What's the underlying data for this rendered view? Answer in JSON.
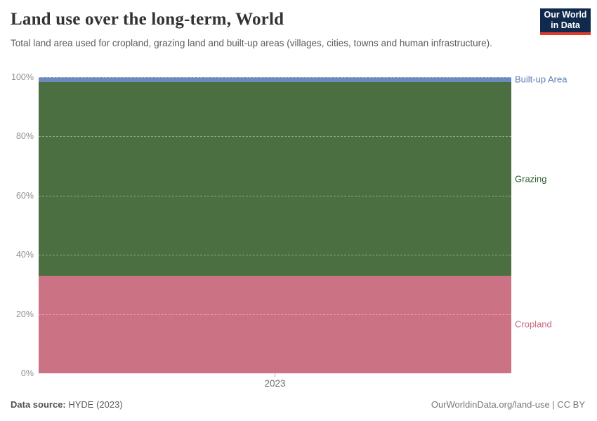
{
  "header": {
    "title": "Land use over the long-term, World",
    "subtitle": "Total land area used for cropland, grazing land and built-up areas (villages, cities, towns and human infrastructure).",
    "logo": {
      "line1": "Our World",
      "line2": "in Data",
      "bg_color": "#10294c",
      "underline_color": "#e23a2b"
    }
  },
  "footer": {
    "source_label": "Data source:",
    "source_value": " HYDE (2023)",
    "attribution": "OurWorldinData.org/land-use | CC BY"
  },
  "chart_data": {
    "type": "area",
    "stacking": "relative",
    "series_order": "top-to-bottom",
    "x": [
      2023
    ],
    "series": [
      {
        "name": "Built-up Area",
        "values": [
          1.6
        ],
        "color": "#6c8abf",
        "label_color": "#5b7db8"
      },
      {
        "name": "Grazing",
        "values": [
          65.4
        ],
        "color": "#4c6f42",
        "label_color": "#2f5e2b"
      },
      {
        "name": "Cropland",
        "values": [
          33.0
        ],
        "color": "#cc7285",
        "label_color": "#c96a80"
      }
    ],
    "title": "Land use over the long-term, World",
    "xlabel": "",
    "ylabel": "",
    "ylim": [
      0,
      100
    ],
    "yticks": [
      0,
      20,
      40,
      60,
      80,
      100
    ],
    "ytick_format": "percent",
    "grid": true,
    "gridline_style": "dashed",
    "legend_position": "right-inline"
  }
}
